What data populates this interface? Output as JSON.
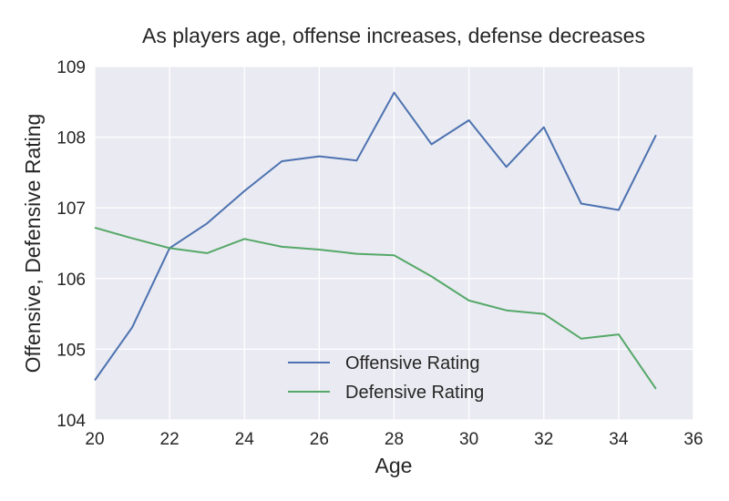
{
  "chart_data": {
    "type": "line",
    "title": "As players age, offense increases, defense decreases",
    "xlabel": "Age",
    "ylabel": "Offensive, Defensive Rating",
    "xlim": [
      20,
      36
    ],
    "ylim": [
      104,
      109
    ],
    "xticks": [
      20,
      22,
      24,
      26,
      28,
      30,
      32,
      34,
      36
    ],
    "yticks": [
      104,
      105,
      106,
      107,
      108,
      109
    ],
    "grid": true,
    "legend_position": "lower-center",
    "x": [
      20,
      21,
      22,
      23,
      24,
      25,
      26,
      27,
      28,
      29,
      30,
      31,
      32,
      33,
      34,
      35
    ],
    "series": [
      {
        "name": "Offensive Rating",
        "color": "#4c72b0",
        "values": [
          104.56,
          105.31,
          106.43,
          106.78,
          107.24,
          107.66,
          107.73,
          107.67,
          108.63,
          107.9,
          108.24,
          107.58,
          108.14,
          107.06,
          106.97,
          108.03
        ]
      },
      {
        "name": "Defensive Rating",
        "color": "#55a868",
        "values": [
          106.72,
          106.57,
          106.43,
          106.36,
          106.56,
          106.45,
          106.41,
          106.35,
          106.33,
          106.03,
          105.69,
          105.55,
          105.5,
          105.15,
          105.21,
          104.44
        ]
      }
    ]
  },
  "colors": {
    "plot_background": "#eaeaf2",
    "grid": "#ffffff",
    "text": "#262626"
  }
}
